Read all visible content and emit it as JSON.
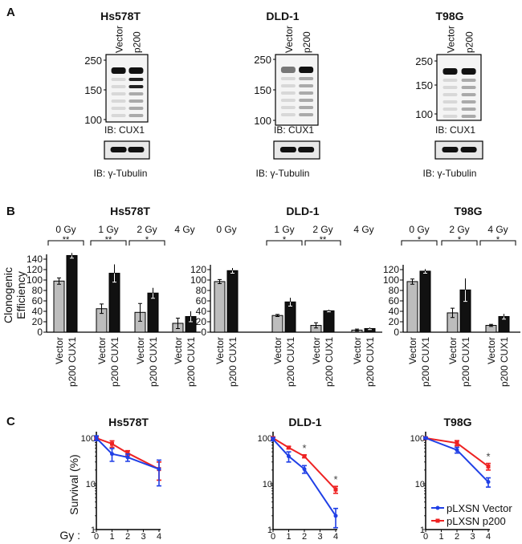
{
  "panel_labels": {
    "a": "A",
    "b": "B",
    "c": "C"
  },
  "blots": [
    {
      "cell_line": "Hs578T",
      "lanes": [
        "Vector",
        "p200"
      ],
      "markers": [
        "250",
        "150",
        "100"
      ],
      "ib_main": "IB: CUX1",
      "ib_loading": "IB: γ-Tubulin"
    },
    {
      "cell_line": "DLD-1",
      "lanes": [
        "Vector",
        "p200"
      ],
      "markers": [
        "250",
        "150",
        "100"
      ],
      "ib_main": "IB: CUX1",
      "ib_loading": "IB: γ-Tubulin"
    },
    {
      "cell_line": "T98G",
      "lanes": [
        "Vector",
        "p200"
      ],
      "markers": [
        "250",
        "150",
        "100"
      ],
      "ib_main": "IB: CUX1",
      "ib_loading": "IB: γ-Tubulin"
    }
  ],
  "bar_ylabel": [
    "Clonogenic",
    "Efficiency"
  ],
  "survival_xprefix": "Gy :",
  "chart_data": [
    {
      "type": "bar",
      "title": "Hs578T",
      "ylabel": "Clonogenic Efficiency",
      "ylim": [
        0,
        140
      ],
      "yticks": [
        "0",
        "20",
        "40",
        "60",
        "80",
        "100",
        "120",
        "140"
      ],
      "categories": [
        "0 Gy",
        "1 Gy",
        "2 Gy",
        "4 Gy"
      ],
      "significance": [
        "**",
        "**",
        "*",
        ""
      ],
      "series": [
        {
          "name": "Vector",
          "color": "#bdbdbd",
          "values": [
            98,
            45,
            38,
            17
          ],
          "errors": [
            6,
            9,
            17,
            10
          ]
        },
        {
          "name": "p200 CUX1",
          "color": "#111111",
          "values": [
            147,
            113,
            75,
            30
          ],
          "errors": [
            5,
            17,
            10,
            10
          ]
        }
      ]
    },
    {
      "type": "bar",
      "title": "DLD-1",
      "ylabel": "Clonogenic Efficiency",
      "ylim": [
        0,
        120
      ],
      "yticks": [
        "0",
        "20",
        "40",
        "60",
        "80",
        "100",
        "120"
      ],
      "categories": [
        "0 Gy",
        "1 Gy",
        "2 Gy",
        "4 Gy"
      ],
      "significance": [
        "",
        "*",
        "**",
        ""
      ],
      "series": [
        {
          "name": "Vector",
          "color": "#bdbdbd",
          "values": [
            97,
            32,
            13,
            4
          ],
          "errors": [
            4,
            2,
            5,
            2
          ]
        },
        {
          "name": "p200 CUX1",
          "color": "#111111",
          "values": [
            118,
            58,
            41,
            7
          ],
          "errors": [
            5,
            8,
            2,
            2
          ]
        }
      ]
    },
    {
      "type": "bar",
      "title": "T98G",
      "ylabel": "Clonogenic Efficiency",
      "ylim": [
        0,
        120
      ],
      "yticks": [
        "0",
        "20",
        "40",
        "60",
        "80",
        "100",
        "120"
      ],
      "categories": [
        "0 Gy",
        "2 Gy",
        "4 Gy"
      ],
      "significance": [
        "*",
        "*",
        "*"
      ],
      "series": [
        {
          "name": "Vector",
          "color": "#bdbdbd",
          "values": [
            97,
            37,
            13
          ],
          "errors": [
            5,
            9,
            2
          ]
        },
        {
          "name": "p200 CUX1",
          "color": "#111111",
          "values": [
            117,
            81,
            30
          ],
          "errors": [
            4,
            22,
            5
          ]
        }
      ]
    },
    {
      "type": "line",
      "title": "Hs578T",
      "xlabel": "Gy",
      "ylabel": "Survival (%)",
      "yscale": "log",
      "ylim": [
        1,
        100
      ],
      "yticks": [
        "1",
        "10",
        "100"
      ],
      "xticks": [
        "0",
        "1",
        "2",
        "3",
        "4"
      ],
      "x": [
        0,
        1,
        2,
        4
      ],
      "significance": [],
      "series": [
        {
          "name": "pLXSN Vector",
          "color": "#1f3fe6",
          "values": [
            100,
            45,
            38,
            21
          ],
          "errors": [
            12,
            14,
            7,
            12
          ]
        },
        {
          "name": "pLXSN p200",
          "color": "#ee2222",
          "values": [
            100,
            75,
            47,
            21
          ],
          "errors": [
            5,
            12,
            6,
            9
          ]
        }
      ]
    },
    {
      "type": "line",
      "title": "DLD-1",
      "xlabel": "Gy",
      "ylabel": "Survival (%)",
      "yscale": "log",
      "ylim": [
        1,
        100
      ],
      "yticks": [
        "1",
        "10",
        "100"
      ],
      "xticks": [
        "0",
        "1",
        "2",
        "3",
        "4"
      ],
      "x": [
        0,
        1,
        2,
        4
      ],
      "significance": [
        {
          "x": 2,
          "label": "*"
        },
        {
          "x": 4,
          "label": "*"
        }
      ],
      "series": [
        {
          "name": "pLXSN Vector",
          "color": "#1f3fe6",
          "values": [
            95,
            40,
            21,
            2
          ],
          "errors": [
            8,
            10,
            4,
            0.9
          ]
        },
        {
          "name": "pLXSN p200",
          "color": "#ee2222",
          "values": [
            100,
            62,
            40,
            7.5
          ],
          "errors": [
            6,
            4,
            3,
            1.3
          ]
        }
      ]
    },
    {
      "type": "line",
      "title": "T98G",
      "xlabel": "Gy",
      "ylabel": "Survival (%)",
      "yscale": "log",
      "ylim": [
        1,
        100
      ],
      "yticks": [
        "1",
        "10",
        "100"
      ],
      "xticks": [
        "0",
        "1",
        "2",
        "3",
        "4"
      ],
      "x": [
        0,
        2,
        4
      ],
      "significance": [
        {
          "x": 4,
          "label": "*"
        }
      ],
      "series": [
        {
          "name": "pLXSN Vector",
          "color": "#1f3fe6",
          "values": [
            100,
            55,
            11
          ],
          "errors": [
            4,
            8,
            2.5
          ]
        },
        {
          "name": "pLXSN p200",
          "color": "#ee2222",
          "values": [
            100,
            78,
            24
          ],
          "errors": [
            4,
            10,
            4
          ]
        }
      ]
    }
  ]
}
